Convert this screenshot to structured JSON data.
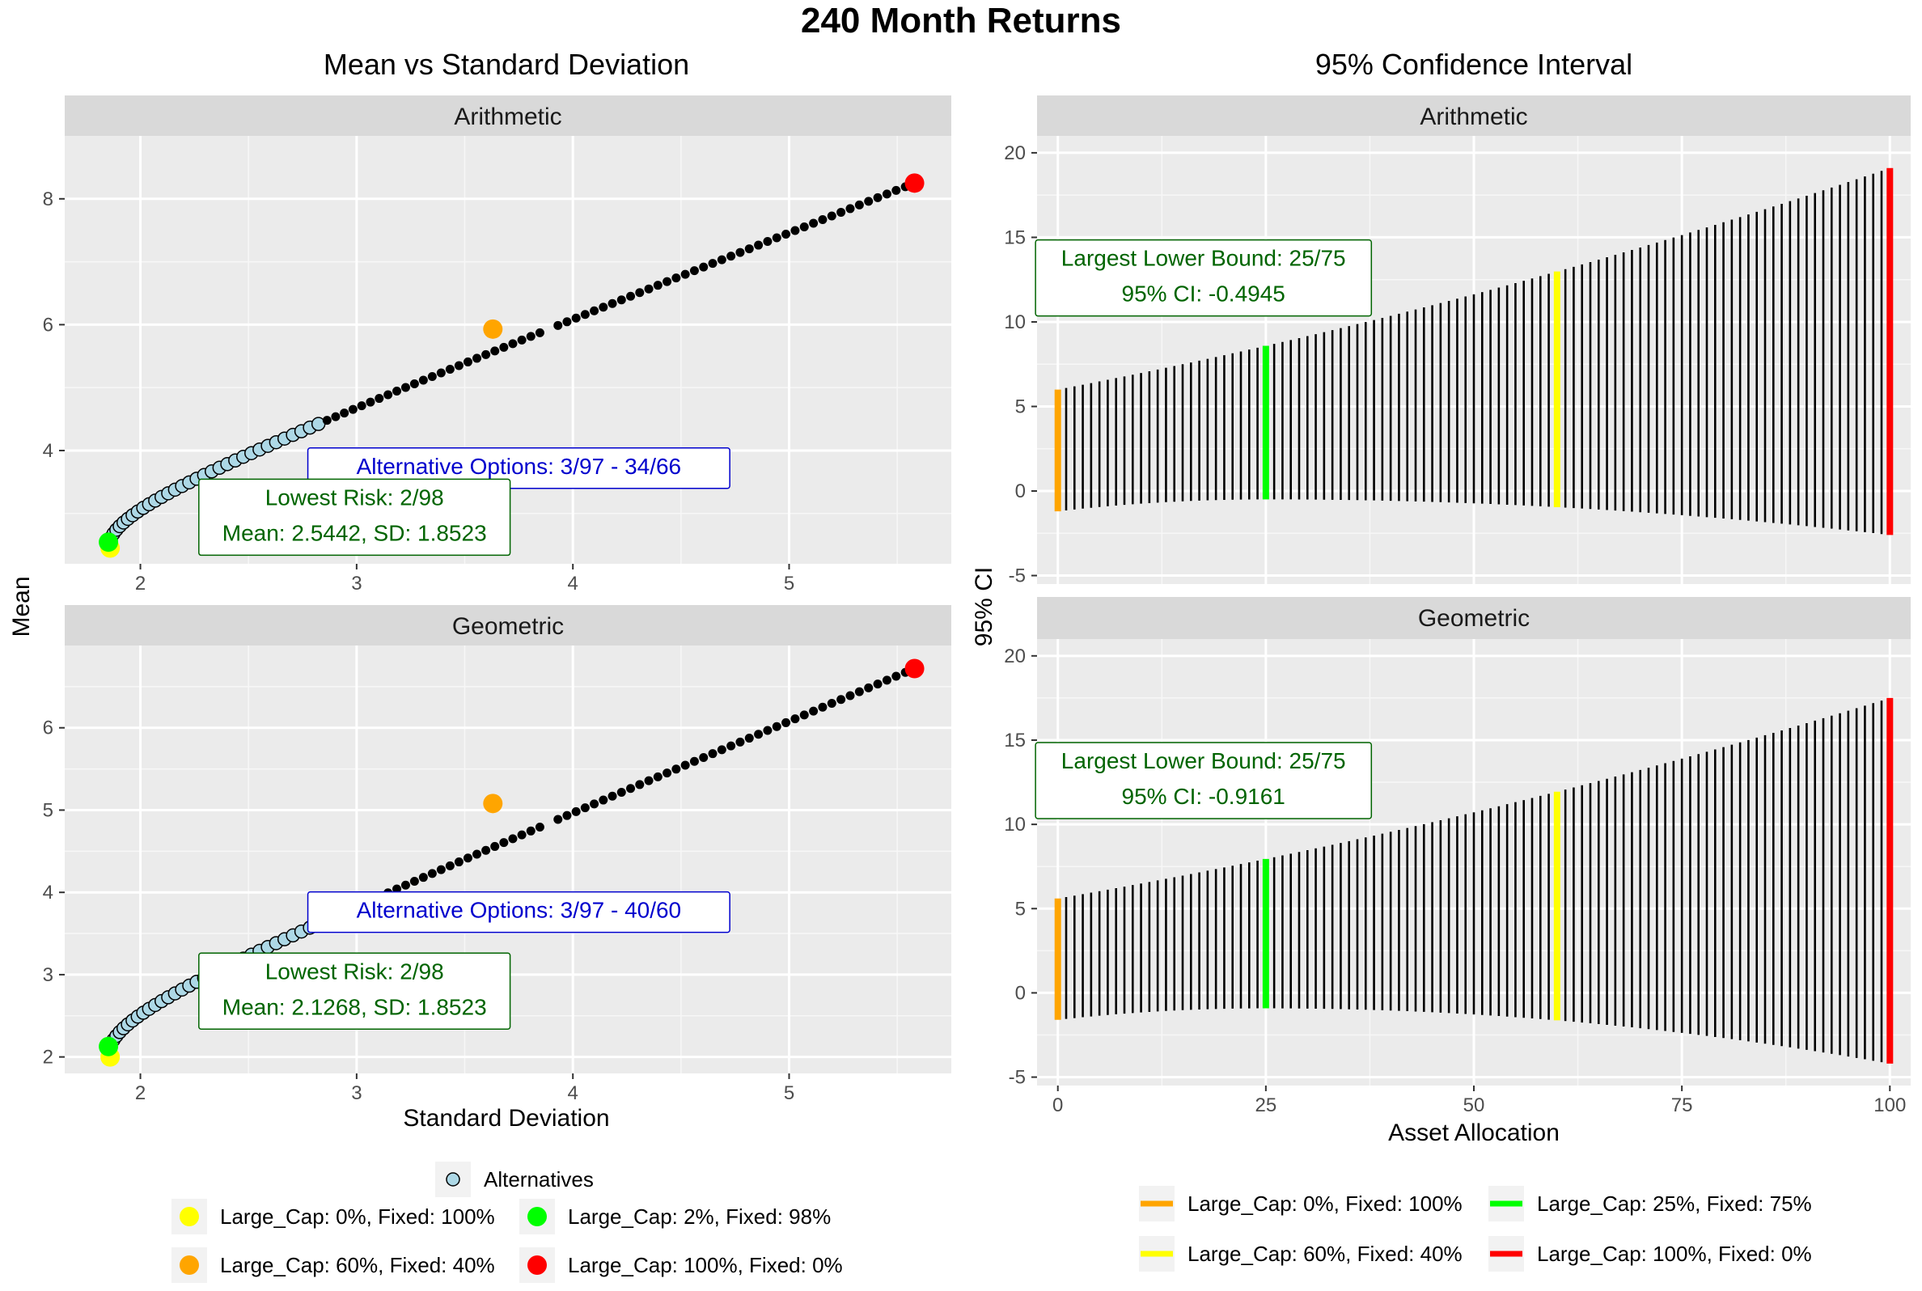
{
  "title": "240 Month Returns",
  "chart_data": [
    {
      "type": "scatter",
      "title": "Mean vs Standard Deviation",
      "xlabel": "Standard Deviation",
      "ylabel": "Mean",
      "panels": [
        {
          "strip": "Arithmetic",
          "xlim": [
            1.65,
            5.75
          ],
          "ylim": [
            2.2,
            9.0
          ],
          "x_ticks": [
            2,
            3,
            4,
            5
          ],
          "y_ticks": [
            4,
            6,
            8
          ],
          "frontier": {
            "sd_min": 1.8523,
            "sd_max": 5.58,
            "mean_min": 2.45,
            "mean_max": 8.25
          },
          "alternatives_range": [
            3,
            34
          ],
          "highlight_points": [
            {
              "name": "Large_Cap: 0%,  Fixed: 100%",
              "x": 1.86,
              "y": 2.45,
              "color": "#ffff00"
            },
            {
              "name": "Large_Cap: 2%,  Fixed: 98%",
              "x": 1.8523,
              "y": 2.5442,
              "color": "#00ff00"
            },
            {
              "name": "Large_Cap: 60%,  Fixed: 40%",
              "x": 3.63,
              "y": 5.93,
              "color": "#ffa500"
            },
            {
              "name": "Large_Cap: 100%,  Fixed: 0%",
              "x": 5.58,
              "y": 8.25,
              "color": "#ff0000"
            }
          ],
          "annotations": [
            {
              "lines": [
                "Alternative Options: 3/97 - 34/66"
              ],
              "x": 3.75,
              "y": 3.72,
              "color": "#0000cd"
            },
            {
              "lines": [
                "Lowest Risk: 2/98",
                "Mean: 2.5442, SD: 1.8523"
              ],
              "x": 2.99,
              "y": 2.94,
              "color": "#006400"
            }
          ]
        },
        {
          "strip": "Geometric",
          "xlim": [
            1.65,
            5.75
          ],
          "ylim": [
            1.8,
            7.0
          ],
          "x_ticks": [
            2,
            3,
            4,
            5
          ],
          "y_ticks": [
            2,
            3,
            4,
            5,
            6
          ],
          "frontier": {
            "sd_min": 1.8523,
            "sd_max": 5.58,
            "mean_min": 2.02,
            "mean_max": 6.72
          },
          "alternatives_range": [
            3,
            40
          ],
          "highlight_points": [
            {
              "name": "Large_Cap: 0%,  Fixed: 100%",
              "x": 1.86,
              "y": 2.0,
              "color": "#ffff00"
            },
            {
              "name": "Large_Cap: 2%,  Fixed: 98%",
              "x": 1.8523,
              "y": 2.1268,
              "color": "#00ff00"
            },
            {
              "name": "Large_Cap: 60%,  Fixed: 40%",
              "x": 3.63,
              "y": 5.08,
              "color": "#ffa500"
            },
            {
              "name": "Large_Cap: 100%,  Fixed: 0%",
              "x": 5.58,
              "y": 6.72,
              "color": "#ff0000"
            }
          ],
          "annotations": [
            {
              "lines": [
                "Alternative Options: 3/97 - 40/60"
              ],
              "x": 3.75,
              "y": 3.76,
              "color": "#0000cd"
            },
            {
              "lines": [
                "Lowest Risk: 2/98",
                "Mean: 2.1268, SD: 1.8523"
              ],
              "x": 2.99,
              "y": 2.8,
              "color": "#006400"
            }
          ]
        }
      ],
      "legend": {
        "placement": "bottom",
        "items": [
          {
            "label": "Alternatives",
            "color": "#add8e6",
            "outline": true
          },
          {
            "label": "Large_Cap: 0%,  Fixed: 100%",
            "color": "#ffff00"
          },
          {
            "label": "Large_Cap: 2%,  Fixed: 98%",
            "color": "#00ff00"
          },
          {
            "label": "Large_Cap: 60%,  Fixed: 40%",
            "color": "#ffa500"
          },
          {
            "label": "Large_Cap: 100%,  Fixed: 0%",
            "color": "#ff0000"
          }
        ]
      }
    },
    {
      "type": "errorbar",
      "title": "95% Confidence Interval",
      "xlabel": "Asset Allocation",
      "ylabel": "95% CI",
      "xlim": [
        -2.5,
        102.5
      ],
      "x_ticks": [
        0,
        25,
        50,
        75,
        100
      ],
      "ylim": [
        -5.5,
        21
      ],
      "y_ticks": [
        -5,
        0,
        5,
        10,
        15,
        20
      ],
      "panels": [
        {
          "strip": "Arithmetic",
          "lower_at_0": -1.2,
          "upper_at_0": 6.0,
          "lower_at_100": -2.6,
          "upper_at_100": 19.1,
          "min_lower_at": 25,
          "min_lower_value": -0.4945,
          "annotation": {
            "lines": [
              "Largest Lower Bound: 25/75",
              "95% CI: -0.4945"
            ],
            "x": 17.5,
            "y": 12.6,
            "color": "#006400"
          }
        },
        {
          "strip": "Geometric",
          "lower_at_0": -1.6,
          "upper_at_0": 5.6,
          "lower_at_100": -4.2,
          "upper_at_100": 17.5,
          "min_lower_at": 25,
          "min_lower_value": -0.9161,
          "annotation": {
            "lines": [
              "Largest Lower Bound: 25/75",
              "95% CI: -0.9161"
            ],
            "x": 17.5,
            "y": 12.6,
            "color": "#006400"
          }
        }
      ],
      "highlight_bars": [
        {
          "x": 0,
          "label": "Large_Cap: 0%,  Fixed: 100%",
          "color": "#ffa500"
        },
        {
          "x": 25,
          "label": "Large_Cap: 25%,  Fixed: 75%",
          "color": "#00ff00"
        },
        {
          "x": 60,
          "label": "Large_Cap: 60%,  Fixed: 40%",
          "color": "#ffff00"
        },
        {
          "x": 100,
          "label": "Large_Cap: 100%,  Fixed: 0%",
          "color": "#ff0000"
        }
      ],
      "legend": {
        "placement": "bottom",
        "items": [
          {
            "label": "Large_Cap: 0%,  Fixed: 100%",
            "color": "#ffa500"
          },
          {
            "label": "Large_Cap: 25%,  Fixed: 75%",
            "color": "#00ff00"
          },
          {
            "label": "Large_Cap: 60%,  Fixed: 40%",
            "color": "#ffff00"
          },
          {
            "label": "Large_Cap: 100%,  Fixed: 0%",
            "color": "#ff0000"
          }
        ]
      }
    }
  ]
}
